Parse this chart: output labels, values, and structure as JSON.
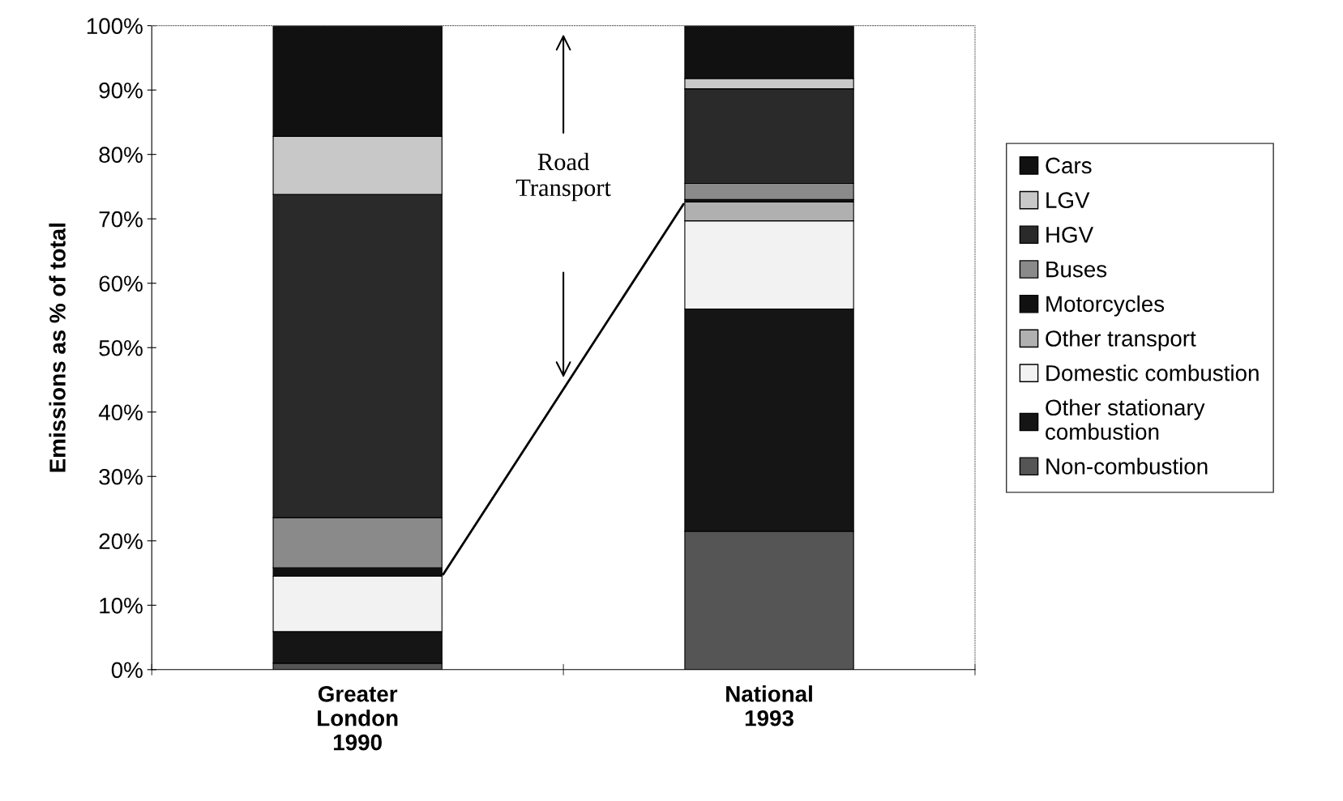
{
  "chart_data": {
    "type": "bar",
    "stacked": true,
    "categories": [
      "Greater\nLondon\n1990",
      "National\n1993"
    ],
    "ylabel": "Emissions as % of total",
    "ylim": [
      0,
      100
    ],
    "yticks": [
      {
        "value": 0,
        "label": "0%"
      },
      {
        "value": 10,
        "label": "10%"
      },
      {
        "value": 20,
        "label": "20%"
      },
      {
        "value": 30,
        "label": "30%"
      },
      {
        "value": 40,
        "label": "40%"
      },
      {
        "value": 50,
        "label": "50%"
      },
      {
        "value": 60,
        "label": "60%"
      },
      {
        "value": 70,
        "label": "70%"
      },
      {
        "value": 80,
        "label": "80%"
      },
      {
        "value": 90,
        "label": "90%"
      },
      {
        "value": 100,
        "label": "100%"
      }
    ],
    "series": [
      {
        "name": "Non-combustion",
        "color": "#555555",
        "values": [
          1.0,
          21.5
        ]
      },
      {
        "name": "Other stationary\ncombustion",
        "color": "#151515",
        "values": [
          4.9,
          34.5
        ]
      },
      {
        "name": "Domestic combustion",
        "color": "#f2f2f2",
        "values": [
          8.6,
          13.7
        ]
      },
      {
        "name": "Other transport",
        "color": "#b0b0b0",
        "values": [
          0,
          2.9
        ]
      },
      {
        "name": "Motorcycles",
        "color": "#111111",
        "values": [
          1.3,
          0.4
        ]
      },
      {
        "name": "Buses",
        "color": "#8a8a8a",
        "values": [
          7.8,
          2.5
        ]
      },
      {
        "name": "HGV",
        "color": "#2a2a2a",
        "values": [
          50.2,
          14.7
        ]
      },
      {
        "name": "LGV",
        "color": "#c8c8c8",
        "values": [
          9.0,
          1.6
        ]
      },
      {
        "name": "Cars",
        "color": "#111111",
        "values": [
          17.2,
          8.2
        ]
      }
    ],
    "annotations": [
      "Road\nTransport"
    ],
    "legend": "right",
    "grid": false
  }
}
